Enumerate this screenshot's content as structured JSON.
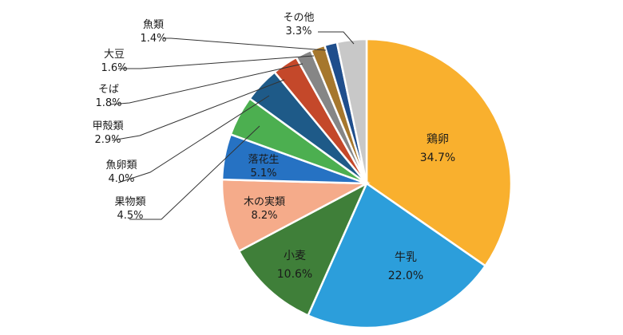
{
  "chart_data": {
    "type": "pie",
    "slices": [
      {
        "label": "鶏卵",
        "value": 34.7,
        "value_label": "34.7%",
        "color": "#F9B02E",
        "label_position": "inside"
      },
      {
        "label": "牛乳",
        "value": 22.0,
        "value_label": "22.0%",
        "color": "#2C9EDB",
        "label_position": "inside"
      },
      {
        "label": "小麦",
        "value": 10.6,
        "value_label": "10.6%",
        "color": "#3F7F39",
        "label_position": "inside"
      },
      {
        "label": "木の実類",
        "value": 8.2,
        "value_label": "8.2%",
        "color": "#F5AB8A",
        "label_position": "inside"
      },
      {
        "label": "落花生",
        "value": 5.1,
        "value_label": "5.1%",
        "color": "#2672C3",
        "label_position": "inside"
      },
      {
        "label": "果物類",
        "value": 4.5,
        "value_label": "4.5%",
        "color": "#4CAF50",
        "label_position": "outside"
      },
      {
        "label": "魚卵類",
        "value": 4.0,
        "value_label": "4.0%",
        "color": "#1E5A88",
        "label_position": "outside"
      },
      {
        "label": "甲殻類",
        "value": 2.9,
        "value_label": "2.9%",
        "color": "#C4482A",
        "label_position": "outside"
      },
      {
        "label": "そば",
        "value": 1.8,
        "value_label": "1.8%",
        "color": "#868686",
        "label_position": "outside"
      },
      {
        "label": "大豆",
        "value": 1.6,
        "value_label": "1.6%",
        "color": "#A6772D",
        "label_position": "outside"
      },
      {
        "label": "魚類",
        "value": 1.4,
        "value_label": "1.4%",
        "color": "#1F4E8C",
        "label_position": "outside"
      },
      {
        "label": "その他",
        "value": 3.3,
        "value_label": "3.3%",
        "color": "#C8C8C8",
        "label_position": "outside"
      }
    ],
    "start": "12 o'clock",
    "direction": "clockwise",
    "legend": "none"
  }
}
